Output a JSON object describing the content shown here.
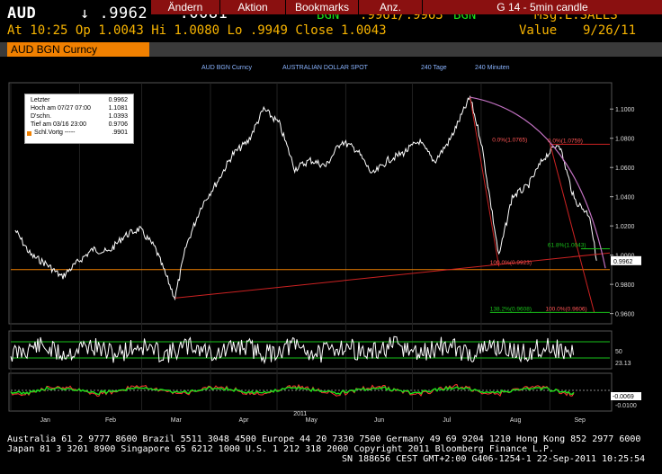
{
  "header": {
    "ticker": "AUD",
    "arrow": "↓",
    "last": ".9962",
    "change": "-.0081",
    "source": "BGN",
    "bidask": ".9961/.9963",
    "bidask_source": "BGN",
    "msg": "Msg:L.SALES",
    "at_label": "At",
    "time": "10:25",
    "op_label": "Op",
    "op": "1.0043",
    "hi_label": "Hi",
    "hi": "1.0080",
    "lo_label": "Lo",
    "lo": ".9949",
    "close_label": "Close",
    "close": "1.0043",
    "value_label": "Value",
    "date": "9/26/11"
  },
  "toolbar": {
    "security": "AUD BGN Curncy",
    "change_label": "Ändern",
    "action_label": "Aktion",
    "bookmarks_label": "Bookmarks",
    "display_label": "Anz.",
    "function_label": "G 14 - 5min candle"
  },
  "subheader": {
    "security": "AUD BGN Curncy",
    "name": "AUSTRALIAN DOLLAR SPOT",
    "range": "240 Tage",
    "interval": "240 Minuten"
  },
  "legend": {
    "rows": [
      {
        "label": "Letzter",
        "value": "0.9962"
      },
      {
        "label": "Hoch am 07/27 07:00",
        "value": "1.1081"
      },
      {
        "label": "D'schn.",
        "value": "1.0393"
      },
      {
        "label": "Tief am 03/16 23:00",
        "value": "0.9706"
      },
      {
        "label": "Schl.Vortg -----",
        "value": ".9901"
      }
    ],
    "marker_color": "#f08000"
  },
  "chart_data": {
    "type": "line",
    "title": "",
    "xlabel": "",
    "ylabel": "",
    "ylim": [
      0.953,
      1.118
    ],
    "x_ticks": [
      "Jan",
      "Feb",
      "Mar",
      "Apr",
      "May",
      "Jun",
      "Jul",
      "Aug",
      "Sep"
    ],
    "year_label": "2011",
    "y_ticks": [
      "1.1000",
      "1.0800",
      "1.0600",
      "1.0400",
      "1.0200",
      "1.0000",
      "0.9800",
      "0.9600"
    ],
    "current_value_label": "0.9962",
    "series": [
      {
        "color": "#ffffff",
        "x_date": [
          "2011-01-03",
          "2011-01-10",
          "2011-01-17",
          "2011-01-24",
          "2011-01-31",
          "2011-02-07",
          "2011-02-14",
          "2011-02-21",
          "2011-02-28",
          "2011-03-07",
          "2011-03-16",
          "2011-03-21",
          "2011-03-28",
          "2011-04-04",
          "2011-04-11",
          "2011-04-18",
          "2011-04-25",
          "2011-05-02",
          "2011-05-09",
          "2011-05-16",
          "2011-05-23",
          "2011-05-30",
          "2011-06-06",
          "2011-06-13",
          "2011-06-20",
          "2011-06-27",
          "2011-07-04",
          "2011-07-11",
          "2011-07-18",
          "2011-07-27",
          "2011-08-01",
          "2011-08-09",
          "2011-08-15",
          "2011-08-22",
          "2011-08-29",
          "2011-09-05",
          "2011-09-12",
          "2011-09-19",
          "2011-09-22"
        ],
        "values": [
          1.017,
          1.0,
          0.994,
          0.985,
          0.995,
          1.004,
          1.002,
          1.013,
          1.018,
          1.005,
          0.9706,
          1.006,
          1.034,
          1.05,
          1.069,
          1.078,
          1.1,
          1.09,
          1.059,
          1.065,
          1.061,
          1.078,
          1.072,
          1.055,
          1.065,
          1.07,
          1.078,
          1.064,
          1.079,
          1.1081,
          1.078,
          0.999,
          1.04,
          1.047,
          1.066,
          1.077,
          1.038,
          1.027,
          0.9962
        ]
      }
    ],
    "fibonacci": {
      "color": "#cc2222",
      "labels": [
        {
          "text": "0.0%(1.0765)",
          "y": 1.0765
        },
        {
          "text": "0.0%(1.0759)",
          "y": 1.0759
        },
        {
          "text": "61.8%(1.0043)",
          "y": 1.0043
        },
        {
          "text": "100.0%(0.9923)",
          "y": 0.9923
        },
        {
          "text": "138.2%(0.9608)",
          "y": 0.9608
        },
        {
          "text": "100.0%(0.9606)",
          "y": 0.9606
        }
      ]
    },
    "reference_lines": [
      {
        "name": "prev-close",
        "y": 0.9901,
        "color": "#f08000"
      }
    ],
    "oscillator1": {
      "ticks": [
        "50",
        "23.13"
      ]
    },
    "oscillator2": {
      "ticks": [
        "-0.0069",
        "-0.0100"
      ]
    }
  },
  "footer": {
    "line1": "Australia 61 2 9777 8600 Brazil 5511 3048 4500 Europe 44 20 7330 7500 Germany 49 69 9204 1210 Hong Kong 852 2977 6000",
    "line2": "Japan 81 3 3201 8900         Singapore 65 6212 1000        U.S. 1 212 318 2000        Copyright 2011 Bloomberg Finance L.P.",
    "line3": "SN 188656 CEST GMT+2:00 G406-1254-1 22-Sep-2011 10:25:54"
  }
}
